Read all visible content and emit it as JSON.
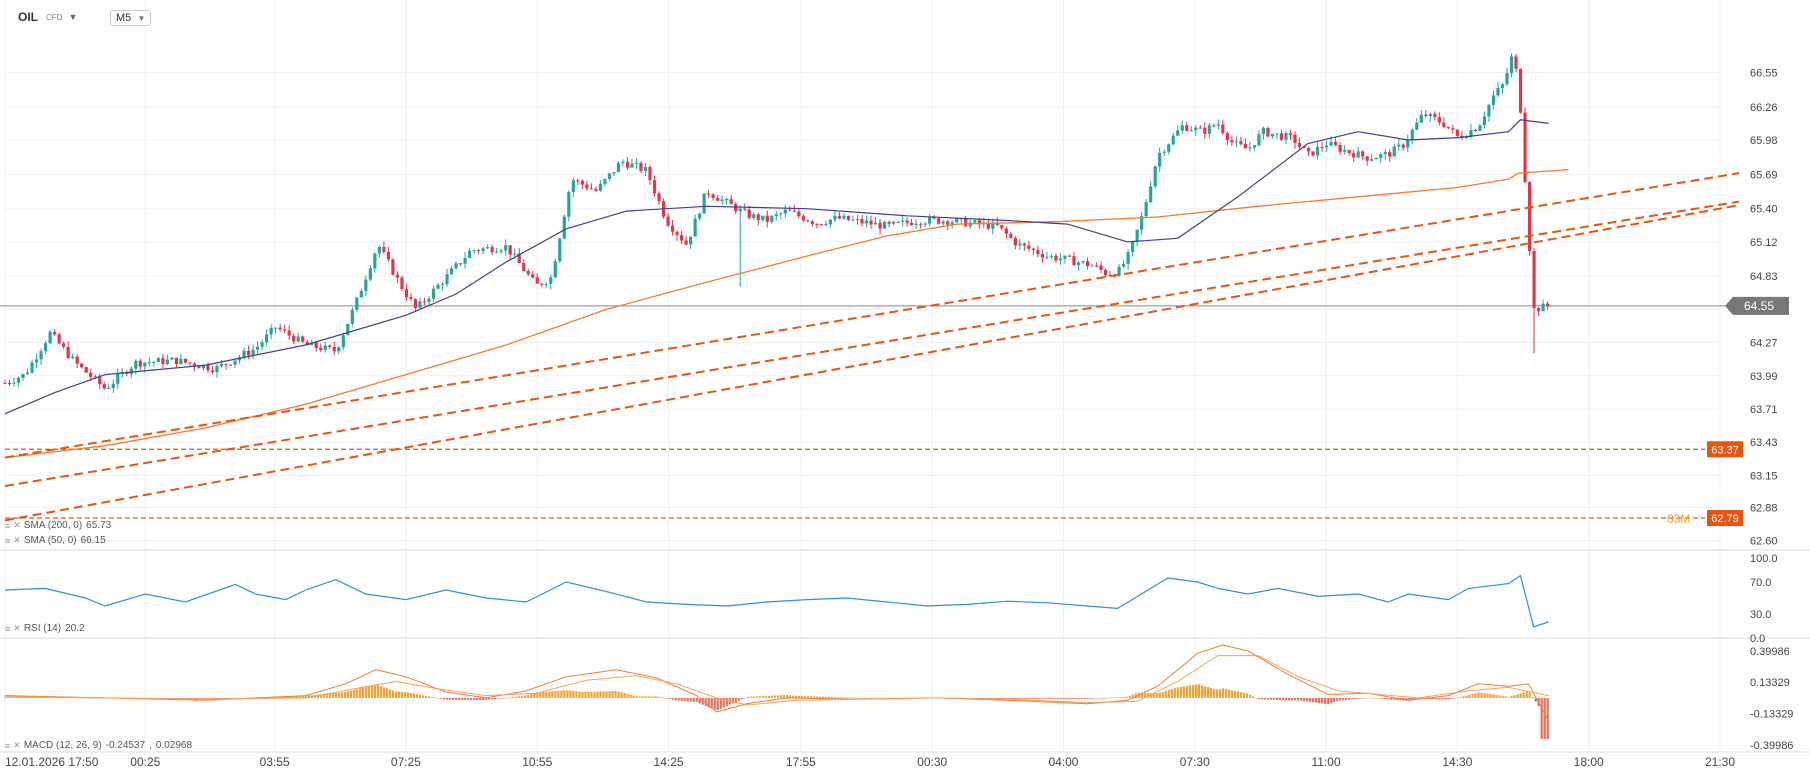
{
  "header": {
    "symbol": "OIL",
    "symbol_type": "CFD",
    "timeframe": "M5",
    "dropdown_icon": "chevron-down-icon"
  },
  "colors": {
    "up": "#26a69a",
    "down": "#e0354c",
    "sma200": "#f57c30",
    "sma50": "#3f3f8f",
    "trend": "#e8550f",
    "level": "#e8550f",
    "rsi": "#2f8fe0",
    "macd_line": "#f57c30",
    "signal_line": "#f5a060",
    "hist_pos": "#f5a030",
    "hist_neg": "#e8705a",
    "price_line": "#888888"
  },
  "chart_data": {
    "type": "line",
    "title": "OIL CFD M5",
    "price_axis": {
      "ticks": [
        66.55,
        66.26,
        65.98,
        65.69,
        65.4,
        65.12,
        64.83,
        64.55,
        64.27,
        63.99,
        63.71,
        63.43,
        63.15,
        62.88,
        62.6
      ],
      "tick_labels": [
        "66.55",
        "66.26",
        "65.98",
        "65.69",
        "65.40",
        "65.12",
        "64.83",
        "",
        "64.27",
        "63.99",
        "63.71",
        "63.43",
        "63.15",
        "62.88",
        "62.60"
      ],
      "ylim": [
        62.52,
        66.95
      ]
    },
    "time_axis": {
      "labels": [
        "12.01.2026  17:50",
        "00:25",
        "03:55",
        "07:25",
        "10:55",
        "14:25",
        "17:55",
        "00:30",
        "04:00",
        "07:30",
        "11:00",
        "14:30",
        "18:00",
        "21:30"
      ],
      "label_x_units": [
        0,
        140,
        269,
        400,
        531,
        662,
        794,
        925,
        1056,
        1187,
        1318,
        1449,
        1580,
        1711
      ]
    },
    "current_price": "64.55",
    "last_value": 64.58,
    "horizontal_levels": [
      {
        "price": 63.37,
        "label": "63.37"
      },
      {
        "price": 62.79,
        "label": "62.79",
        "note": "03M"
      }
    ],
    "trendlines": [
      {
        "x1": 0,
        "y1": 63.3,
        "x2": 1730,
        "y2": 65.7
      },
      {
        "x1": 0,
        "y1": 63.06,
        "x2": 1730,
        "y2": 65.46
      },
      {
        "x1": 0,
        "y1": 62.77,
        "x2": 1730,
        "y2": 65.43
      }
    ],
    "price_path": [
      [
        0,
        63.93
      ],
      [
        20,
        64.0
      ],
      [
        45,
        64.35
      ],
      [
        70,
        64.1
      ],
      [
        100,
        63.88
      ],
      [
        130,
        64.1
      ],
      [
        170,
        64.12
      ],
      [
        210,
        64.05
      ],
      [
        250,
        64.22
      ],
      [
        270,
        64.4
      ],
      [
        300,
        64.25
      ],
      [
        330,
        64.2
      ],
      [
        350,
        64.6
      ],
      [
        372,
        65.1
      ],
      [
        395,
        64.75
      ],
      [
        410,
        64.55
      ],
      [
        440,
        64.82
      ],
      [
        465,
        65.05
      ],
      [
        500,
        65.08
      ],
      [
        530,
        64.75
      ],
      [
        545,
        64.82
      ],
      [
        565,
        65.65
      ],
      [
        590,
        65.55
      ],
      [
        615,
        65.8
      ],
      [
        640,
        65.72
      ],
      [
        660,
        65.3
      ],
      [
        680,
        65.1
      ],
      [
        700,
        65.55
      ],
      [
        720,
        65.45
      ],
      [
        740,
        65.35
      ],
      [
        760,
        65.3
      ],
      [
        780,
        65.38
      ],
      [
        810,
        65.28
      ],
      [
        830,
        65.32
      ],
      [
        860,
        65.28
      ],
      [
        880,
        65.25
      ],
      [
        910,
        65.3
      ],
      [
        940,
        65.3
      ],
      [
        960,
        65.28
      ],
      [
        990,
        65.25
      ],
      [
        1010,
        65.1
      ],
      [
        1040,
        65.0
      ],
      [
        1060,
        64.97
      ],
      [
        1085,
        64.92
      ],
      [
        1100,
        64.85
      ],
      [
        1112,
        64.88
      ],
      [
        1122,
        65.02
      ],
      [
        1135,
        65.35
      ],
      [
        1150,
        65.85
      ],
      [
        1165,
        66.0
      ],
      [
        1175,
        66.1
      ],
      [
        1195,
        66.05
      ],
      [
        1210,
        66.12
      ],
      [
        1225,
        65.95
      ],
      [
        1240,
        65.9
      ],
      [
        1255,
        66.05
      ],
      [
        1270,
        66.02
      ],
      [
        1285,
        65.99
      ],
      [
        1300,
        65.85
      ],
      [
        1318,
        65.95
      ],
      [
        1340,
        65.88
      ],
      [
        1360,
        65.83
      ],
      [
        1380,
        65.86
      ],
      [
        1395,
        65.94
      ],
      [
        1415,
        66.2
      ],
      [
        1435,
        66.12
      ],
      [
        1450,
        66.0
      ],
      [
        1470,
        66.1
      ],
      [
        1485,
        66.35
      ],
      [
        1495,
        66.45
      ],
      [
        1503,
        66.67
      ],
      [
        1510,
        66.5
      ],
      [
        1525,
        64.55
      ],
      [
        1540,
        64.58
      ]
    ],
    "series": [
      {
        "name": "SMA (200, 0)",
        "value": "65.73"
      },
      {
        "name": "SMA (50, 0)",
        "value": "66.15"
      }
    ],
    "sma200_path": [
      [
        0,
        63.3
      ],
      [
        100,
        63.4
      ],
      [
        200,
        63.55
      ],
      [
        300,
        63.75
      ],
      [
        400,
        64.0
      ],
      [
        500,
        64.25
      ],
      [
        600,
        64.55
      ],
      [
        700,
        64.78
      ],
      [
        800,
        65.0
      ],
      [
        880,
        65.17
      ],
      [
        950,
        65.27
      ],
      [
        1050,
        65.29
      ],
      [
        1150,
        65.33
      ],
      [
        1250,
        65.42
      ],
      [
        1350,
        65.5
      ],
      [
        1450,
        65.58
      ],
      [
        1500,
        65.65
      ],
      [
        1510,
        65.7
      ],
      [
        1560,
        65.73
      ]
    ],
    "sma50_path": [
      [
        0,
        63.67
      ],
      [
        50,
        63.85
      ],
      [
        100,
        64.0
      ],
      [
        200,
        64.08
      ],
      [
        300,
        64.25
      ],
      [
        400,
        64.5
      ],
      [
        450,
        64.68
      ],
      [
        500,
        64.95
      ],
      [
        560,
        65.23
      ],
      [
        620,
        65.38
      ],
      [
        700,
        65.42
      ],
      [
        800,
        65.4
      ],
      [
        900,
        65.34
      ],
      [
        1000,
        65.3
      ],
      [
        1060,
        65.27
      ],
      [
        1120,
        65.12
      ],
      [
        1170,
        65.15
      ],
      [
        1230,
        65.5
      ],
      [
        1300,
        65.95
      ],
      [
        1350,
        66.05
      ],
      [
        1400,
        65.98
      ],
      [
        1450,
        66.0
      ],
      [
        1500,
        66.05
      ],
      [
        1512,
        66.15
      ],
      [
        1540,
        66.12
      ]
    ],
    "rsi": {
      "name": "RSI (14)",
      "value": "20.2",
      "ticks": [
        "100.0",
        "70.0",
        "30.0",
        "0.0"
      ],
      "path": [
        [
          0,
          60
        ],
        [
          40,
          62
        ],
        [
          80,
          50
        ],
        [
          100,
          40
        ],
        [
          140,
          55
        ],
        [
          180,
          45
        ],
        [
          230,
          67
        ],
        [
          250,
          55
        ],
        [
          280,
          48
        ],
        [
          300,
          60
        ],
        [
          330,
          73
        ],
        [
          360,
          55
        ],
        [
          400,
          48
        ],
        [
          440,
          60
        ],
        [
          480,
          50
        ],
        [
          520,
          45
        ],
        [
          560,
          70
        ],
        [
          600,
          58
        ],
        [
          640,
          45
        ],
        [
          680,
          42
        ],
        [
          720,
          40
        ],
        [
          760,
          45
        ],
        [
          800,
          48
        ],
        [
          840,
          50
        ],
        [
          880,
          45
        ],
        [
          920,
          40
        ],
        [
          960,
          42
        ],
        [
          1000,
          46
        ],
        [
          1040,
          44
        ],
        [
          1080,
          40
        ],
        [
          1110,
          37
        ],
        [
          1130,
          52
        ],
        [
          1160,
          75
        ],
        [
          1190,
          70
        ],
        [
          1210,
          62
        ],
        [
          1240,
          55
        ],
        [
          1270,
          62
        ],
        [
          1310,
          52
        ],
        [
          1350,
          55
        ],
        [
          1380,
          45
        ],
        [
          1400,
          55
        ],
        [
          1440,
          48
        ],
        [
          1460,
          62
        ],
        [
          1500,
          68
        ],
        [
          1512,
          78
        ],
        [
          1525,
          14
        ],
        [
          1540,
          20
        ]
      ]
    },
    "macd": {
      "name": "MACD (12, 26, 9)",
      "values": [
        "-0.24537",
        "0.02968"
      ],
      "ticks": [
        "0.39986",
        "0.13329",
        "-0.13329",
        "-0.39986"
      ],
      "ylim": [
        -0.46,
        0.45
      ],
      "macd_path": [
        [
          0,
          0.02
        ],
        [
          100,
          0.0
        ],
        [
          200,
          -0.02
        ],
        [
          300,
          0.02
        ],
        [
          340,
          0.12
        ],
        [
          370,
          0.24
        ],
        [
          400,
          0.18
        ],
        [
          440,
          0.05
        ],
        [
          480,
          0.0
        ],
        [
          520,
          0.06
        ],
        [
          560,
          0.18
        ],
        [
          610,
          0.24
        ],
        [
          650,
          0.17
        ],
        [
          690,
          0.02
        ],
        [
          710,
          -0.12
        ],
        [
          740,
          -0.05
        ],
        [
          780,
          0.0
        ],
        [
          850,
          -0.01
        ],
        [
          930,
          0.0
        ],
        [
          1000,
          -0.02
        ],
        [
          1080,
          -0.05
        ],
        [
          1120,
          -0.02
        ],
        [
          1150,
          0.1
        ],
        [
          1190,
          0.38
        ],
        [
          1215,
          0.45
        ],
        [
          1240,
          0.4
        ],
        [
          1280,
          0.2
        ],
        [
          1320,
          0.03
        ],
        [
          1360,
          0.04
        ],
        [
          1400,
          -0.02
        ],
        [
          1440,
          0.02
        ],
        [
          1470,
          0.12
        ],
        [
          1500,
          0.1
        ],
        [
          1520,
          0.12
        ],
        [
          1540,
          -0.2
        ]
      ],
      "signal_path": [
        [
          0,
          0.01
        ],
        [
          100,
          0.0
        ],
        [
          200,
          -0.01
        ],
        [
          300,
          0.0
        ],
        [
          350,
          0.08
        ],
        [
          390,
          0.14
        ],
        [
          430,
          0.08
        ],
        [
          480,
          0.02
        ],
        [
          530,
          0.04
        ],
        [
          580,
          0.15
        ],
        [
          630,
          0.19
        ],
        [
          670,
          0.12
        ],
        [
          710,
          0.0
        ],
        [
          740,
          -0.06
        ],
        [
          790,
          -0.02
        ],
        [
          860,
          -0.01
        ],
        [
          930,
          0.0
        ],
        [
          1000,
          -0.01
        ],
        [
          1080,
          -0.04
        ],
        [
          1130,
          -0.03
        ],
        [
          1170,
          0.14
        ],
        [
          1210,
          0.36
        ],
        [
          1250,
          0.36
        ],
        [
          1290,
          0.18
        ],
        [
          1330,
          0.06
        ],
        [
          1370,
          0.03
        ],
        [
          1410,
          0.0
        ],
        [
          1460,
          0.06
        ],
        [
          1500,
          0.09
        ],
        [
          1540,
          0.02
        ]
      ]
    }
  }
}
